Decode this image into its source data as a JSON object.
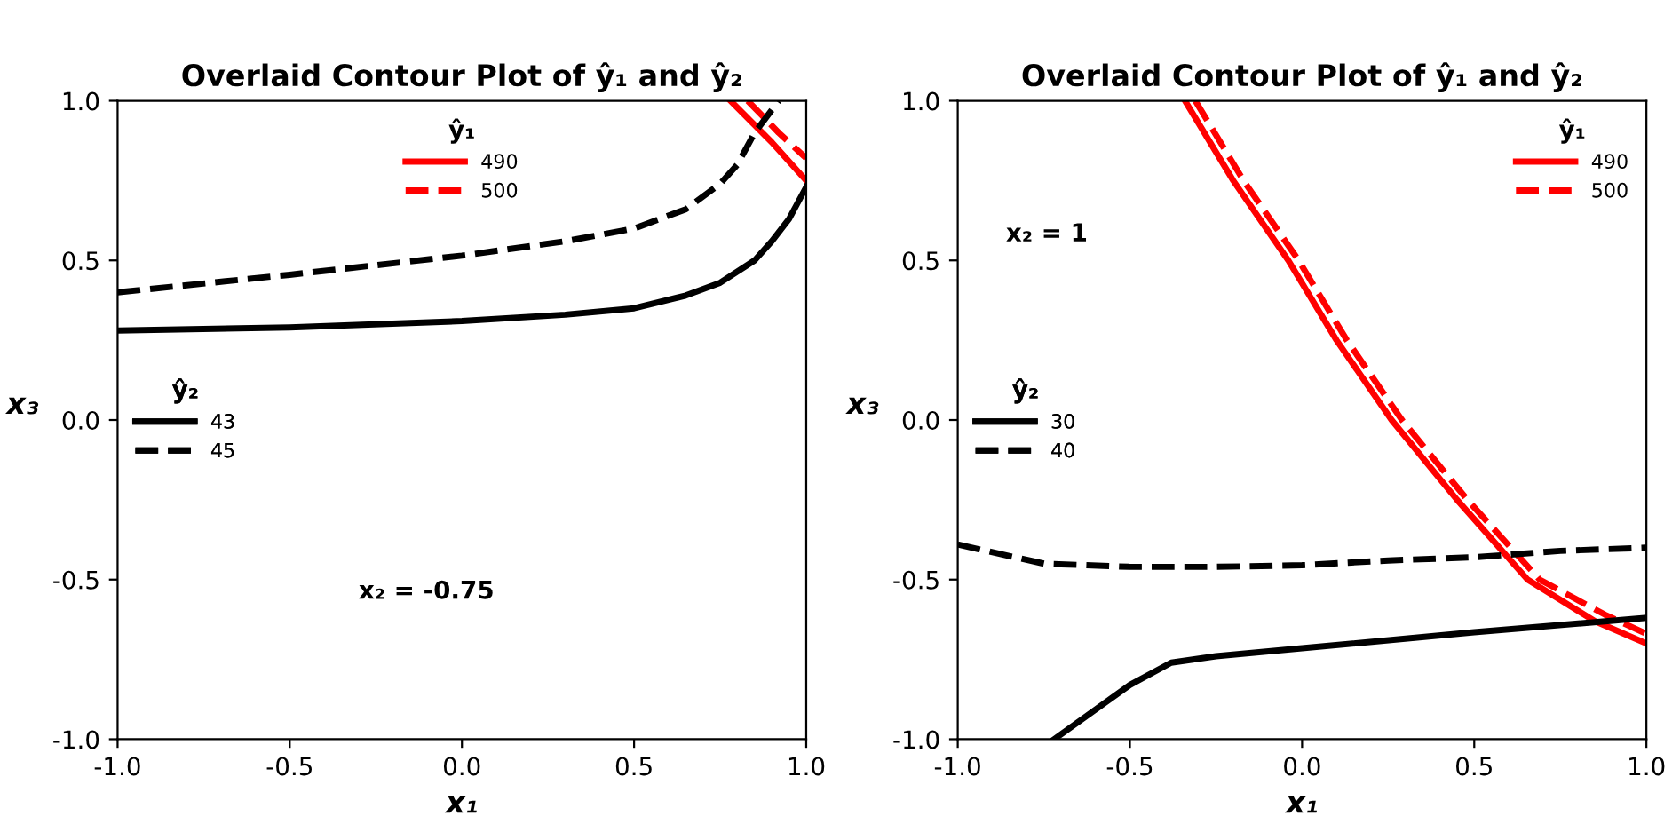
{
  "chart_data": [
    {
      "type": "line",
      "title": "Overlaid Contour Plot of ŷ₁ and ŷ₂",
      "xlabel": "x₁",
      "ylabel": "x₃",
      "xlim": [
        -1,
        1
      ],
      "ylim": [
        -1,
        1
      ],
      "xticks": [
        {
          "value": -1,
          "label": "-1.0"
        },
        {
          "value": -0.5,
          "label": "-0.5"
        },
        {
          "value": 0,
          "label": "0.0"
        },
        {
          "value": 0.5,
          "label": "0.5"
        },
        {
          "value": 1,
          "label": "1.0"
        }
      ],
      "yticks": [
        {
          "value": -1,
          "label": "-1.0"
        },
        {
          "value": -0.5,
          "label": "-0.5"
        },
        {
          "value": 0,
          "label": "0.0"
        },
        {
          "value": 0.5,
          "label": "0.5"
        },
        {
          "value": 1,
          "label": "1.0"
        }
      ],
      "grid": false,
      "legend": [
        "upper center",
        "center left"
      ],
      "legend_title": [
        "ŷ₁",
        "ŷ₂"
      ],
      "series": [
        {
          "name": "490",
          "color": "#ff0000",
          "line_style": "solid",
          "x": [
            0.78,
            0.9,
            1.0
          ],
          "values": [
            1.0,
            0.87,
            0.75
          ]
        },
        {
          "name": "500",
          "color": "#ff0000",
          "line_style": "dashed",
          "x": [
            0.83,
            0.92,
            1.0
          ],
          "values": [
            1.0,
            0.9,
            0.82
          ]
        },
        {
          "name": "43",
          "color": "#000000",
          "line_style": "solid",
          "x": [
            -1,
            -0.5,
            0,
            0.3,
            0.5,
            0.65,
            0.75,
            0.85,
            0.9,
            0.95,
            1
          ],
          "values": [
            0.28,
            0.29,
            0.31,
            0.33,
            0.35,
            0.39,
            0.43,
            0.5,
            0.56,
            0.63,
            0.73
          ]
        },
        {
          "name": "45",
          "color": "#000000",
          "line_style": "dashed",
          "x": [
            -1,
            -0.5,
            0,
            0.3,
            0.5,
            0.65,
            0.75,
            0.8,
            0.85,
            0.92
          ],
          "values": [
            0.4,
            0.455,
            0.515,
            0.56,
            0.6,
            0.66,
            0.74,
            0.8,
            0.9,
            1.0
          ]
        }
      ],
      "annotations": [
        "x₂ = -0.75"
      ]
    },
    {
      "type": "line",
      "title": "Overlaid Contour Plot of ŷ₁ and ŷ₂",
      "xlabel": "x₁",
      "ylabel": "x₃",
      "xlim": [
        -1,
        1
      ],
      "ylim": [
        -1,
        1
      ],
      "xticks": [
        {
          "value": -1,
          "label": "-1.0"
        },
        {
          "value": -0.5,
          "label": "-0.5"
        },
        {
          "value": 0,
          "label": "0.0"
        },
        {
          "value": 0.5,
          "label": "0.5"
        },
        {
          "value": 1,
          "label": "1.0"
        }
      ],
      "yticks": [
        {
          "value": -1,
          "label": "-1.0"
        },
        {
          "value": -0.5,
          "label": "-0.5"
        },
        {
          "value": 0,
          "label": "0.0"
        },
        {
          "value": 0.5,
          "label": "0.5"
        },
        {
          "value": 1,
          "label": "1.0"
        }
      ],
      "grid": false,
      "legend": [
        "upper right",
        "center left"
      ],
      "legend_title": [
        "ŷ₁",
        "ŷ₂"
      ],
      "series": [
        {
          "name": "490",
          "color": "#ff0000",
          "line_style": "solid",
          "x": [
            -0.34,
            -0.2,
            -0.04,
            0.1,
            0.26,
            0.45,
            0.655,
            0.85,
            1.0
          ],
          "values": [
            1.0,
            0.75,
            0.5,
            0.25,
            0.0,
            -0.25,
            -0.5,
            -0.63,
            -0.7
          ]
        },
        {
          "name": "500",
          "color": "#ff0000",
          "line_style": "dashed",
          "x": [
            -0.31,
            -0.17,
            -0.01,
            0.13,
            0.29,
            0.48,
            0.69,
            0.88,
            1.0
          ],
          "values": [
            1.0,
            0.75,
            0.5,
            0.25,
            0.0,
            -0.25,
            -0.5,
            -0.61,
            -0.67
          ]
        },
        {
          "name": "30",
          "color": "#000000",
          "line_style": "solid",
          "x": [
            -0.72,
            -0.5,
            -0.38,
            -0.25,
            0,
            0.5,
            1
          ],
          "values": [
            -1.0,
            -0.83,
            -0.76,
            -0.74,
            -0.715,
            -0.665,
            -0.62
          ]
        },
        {
          "name": "40",
          "color": "#000000",
          "line_style": "dashed",
          "x": [
            -1,
            -0.75,
            -0.5,
            -0.25,
            0,
            0.25,
            0.5,
            0.75,
            1
          ],
          "values": [
            -0.39,
            -0.45,
            -0.46,
            -0.46,
            -0.455,
            -0.44,
            -0.43,
            -0.41,
            -0.4
          ]
        }
      ],
      "annotations": [
        "x₂ = 1"
      ]
    }
  ]
}
